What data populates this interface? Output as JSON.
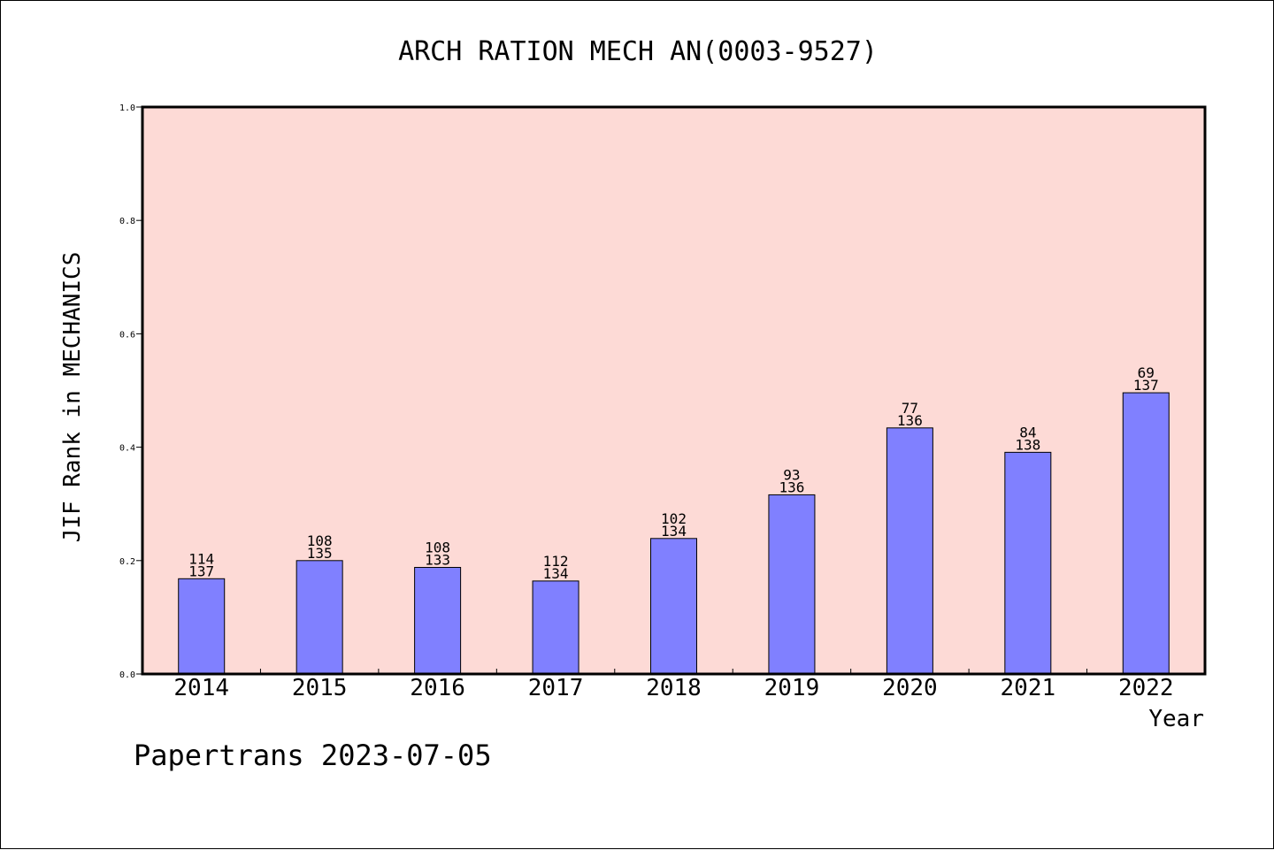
{
  "chart_data": {
    "type": "bar",
    "title": "ARCH RATION MECH AN(0003-9527)",
    "xlabel": "Year",
    "ylabel": "JIF Rank in MECHANICS",
    "footer": "Papertrans 2023-07-05",
    "ylim": [
      0,
      1.0
    ],
    "yticks": [
      "0.0",
      "0.2",
      "0.4",
      "0.6",
      "0.8",
      "1.0"
    ],
    "categories": [
      "2014",
      "2015",
      "2016",
      "2017",
      "2018",
      "2019",
      "2020",
      "2021",
      "2022"
    ],
    "values": [
      0.168,
      0.2,
      0.188,
      0.164,
      0.239,
      0.316,
      0.434,
      0.391,
      0.496
    ],
    "ranks": [
      "114",
      "108",
      "108",
      "112",
      "102",
      "93",
      "77",
      "84",
      "69"
    ],
    "totals": [
      "137",
      "135",
      "133",
      "134",
      "134",
      "136",
      "136",
      "138",
      "137"
    ],
    "grid": false,
    "colors": {
      "plot_background": "#fddad6",
      "bar_fill": "#8080ff",
      "bar_stroke": "#000000"
    }
  }
}
